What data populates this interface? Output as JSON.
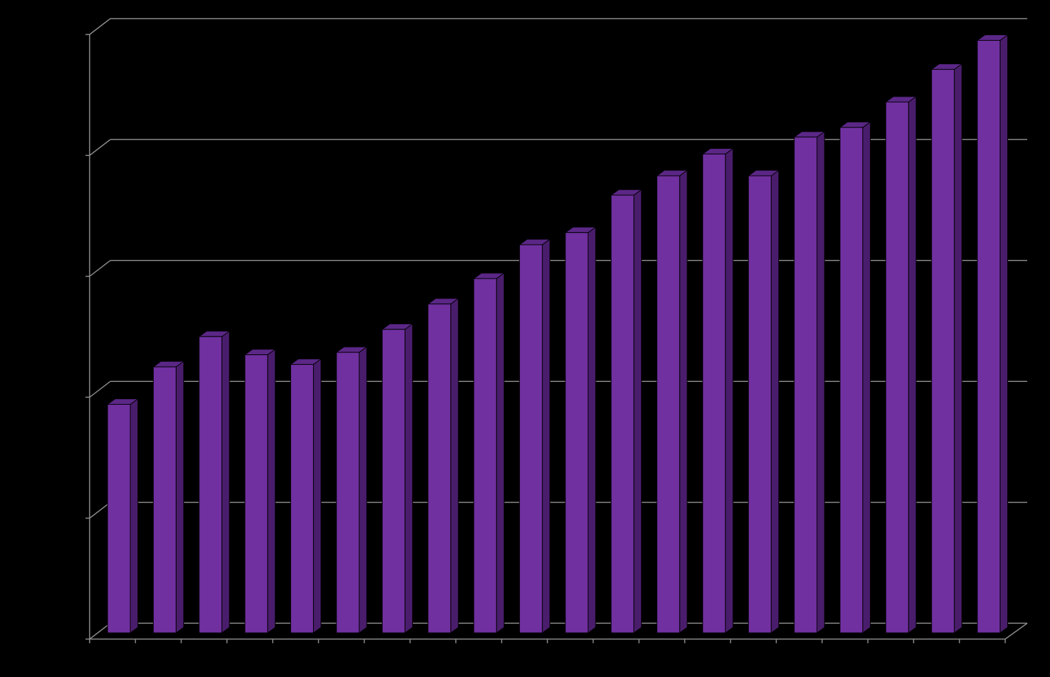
{
  "chart_data": {
    "type": "bar",
    "categories": [
      null,
      null,
      null,
      null,
      null,
      null,
      null,
      null,
      null,
      null,
      null,
      null,
      null,
      null,
      null,
      null,
      null,
      null,
      null,
      null
    ],
    "values": [
      1.89,
      2.2,
      2.45,
      2.3,
      2.22,
      2.32,
      2.51,
      2.72,
      2.93,
      3.21,
      3.31,
      3.62,
      3.78,
      3.96,
      3.78,
      4.1,
      4.18,
      4.39,
      4.66,
      4.9
    ],
    "color": "#7030a0",
    "ylim": [
      0,
      5
    ],
    "yticks": [
      0,
      1,
      2,
      3,
      4,
      5
    ],
    "grid": true
  }
}
